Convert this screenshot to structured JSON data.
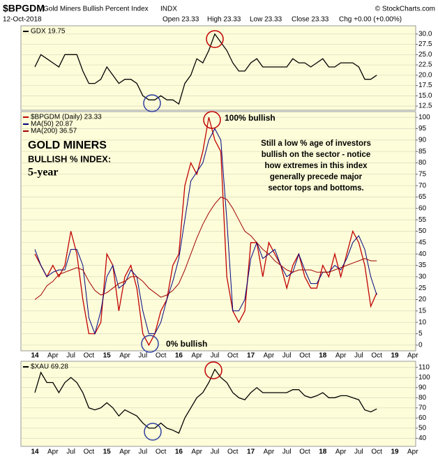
{
  "header": {
    "symbol": "$BPGDM",
    "name": "Gold Miners Bullish Percent Index",
    "exchange": "INDX",
    "source": "© StockCharts.com",
    "date": "12-Oct-2018",
    "quote": [
      "Open 23.33",
      "High 23.33",
      "Low 23.33",
      "Close 23.33",
      "Chg +0.00 (+0.00%)"
    ]
  },
  "chart_data": [
    {
      "type": "line",
      "grid": true,
      "legend": "upper left",
      "series": [
        {
          "name": "GDX 19.75",
          "color": "#000000",
          "values": [
            22,
            25,
            24,
            23,
            22,
            25,
            25,
            25,
            21,
            18,
            18,
            19,
            22,
            20,
            18,
            19,
            19,
            18,
            15,
            14,
            14,
            15,
            14,
            14,
            13,
            18,
            20,
            24,
            23,
            26,
            30,
            28,
            26,
            23,
            21,
            21,
            23,
            24,
            22,
            22,
            22,
            22,
            22,
            24,
            23,
            23,
            22,
            23,
            24,
            22,
            22,
            23,
            23,
            23,
            22,
            19,
            19,
            20,
            null,
            null,
            null,
            null,
            null,
            null
          ]
        }
      ],
      "ylim": [
        11.5,
        32
      ],
      "yticks": [
        12.5,
        {
          "value": 15,
          "label": "15.0"
        },
        17.5,
        {
          "value": 20,
          "label": "20.0"
        },
        22.5,
        {
          "value": 25,
          "label": "25.0"
        },
        27.5,
        {
          "value": 30,
          "label": "30.0"
        }
      ]
    },
    {
      "type": "line",
      "grid": true,
      "legend": "upper left",
      "categories": [
        "14",
        null,
        null,
        "Apr",
        null,
        null,
        "Jul",
        null,
        null,
        "Oct",
        null,
        null,
        "15",
        null,
        null,
        "Apr",
        null,
        null,
        "Jul",
        null,
        null,
        "Oct",
        null,
        null,
        "16",
        null,
        null,
        "Apr",
        null,
        null,
        "Jul",
        null,
        null,
        "Oct",
        null,
        null,
        "17",
        null,
        null,
        "Apr",
        null,
        null,
        "Jul",
        null,
        null,
        "Oct",
        null,
        null,
        "18",
        null,
        null,
        "Apr",
        null,
        null,
        "Jul",
        null,
        null,
        "Oct",
        null,
        null,
        "19",
        null,
        null,
        "Apr"
      ],
      "series": [
        {
          "name": "$BPGDM (Daily) 23.33",
          "color": "#c00000",
          "values": [
            40,
            35,
            30,
            35,
            30,
            35,
            50,
            40,
            20,
            5,
            5,
            10,
            40,
            35,
            15,
            30,
            35,
            25,
            5,
            0,
            5,
            15,
            20,
            35,
            40,
            70,
            80,
            75,
            85,
            100,
            90,
            85,
            30,
            15,
            10,
            15,
            45,
            45,
            30,
            45,
            40,
            35,
            25,
            35,
            40,
            30,
            25,
            25,
            35,
            30,
            40,
            30,
            40,
            50,
            45,
            35,
            17,
            23,
            null,
            null,
            null,
            null,
            null,
            null
          ]
        },
        {
          "name": "MA(50) 20.87",
          "color": "#000080",
          "values": [
            42,
            35,
            30,
            32,
            33,
            33,
            42,
            42,
            35,
            12,
            5,
            15,
            30,
            35,
            25,
            27,
            33,
            30,
            15,
            5,
            5,
            10,
            20,
            28,
            38,
            55,
            72,
            76,
            80,
            90,
            95,
            90,
            55,
            15,
            15,
            20,
            38,
            45,
            38,
            40,
            42,
            35,
            30,
            32,
            40,
            33,
            27,
            27,
            32,
            32,
            35,
            33,
            38,
            45,
            48,
            42,
            30,
            22,
            null,
            null,
            null,
            null,
            null,
            null
          ]
        },
        {
          "name": "MA(200) 36.57",
          "color": "#a00000",
          "values": [
            20,
            22,
            26,
            28,
            31,
            32,
            33,
            34,
            33,
            28,
            24,
            22,
            23,
            25,
            27,
            28,
            30,
            30,
            28,
            25,
            23,
            21,
            22,
            24,
            27,
            33,
            40,
            47,
            53,
            58,
            62,
            65,
            64,
            60,
            55,
            50,
            48,
            45,
            42,
            40,
            37,
            35,
            33,
            32,
            33,
            33,
            33,
            32,
            32,
            32,
            33,
            34,
            35,
            36,
            37,
            38,
            37,
            37,
            null,
            null,
            null,
            null,
            null,
            null
          ]
        }
      ],
      "ylim": [
        -2.5,
        102.5
      ],
      "yticks": [
        0,
        5,
        10,
        15,
        20,
        25,
        30,
        35,
        40,
        45,
        50,
        55,
        60,
        65,
        70,
        75,
        80,
        85,
        90,
        95,
        100
      ],
      "annotations": [
        "100% bullish",
        "0% bullish",
        "GOLD MINERS",
        "BULLISH % INDEX:",
        "5-year",
        "Still a low % age of investors",
        "bullish on the sector - notice",
        "how extremes in this index",
        "generally precede major",
        "sector tops and bottoms."
      ]
    },
    {
      "type": "line",
      "grid": true,
      "legend": "upper left",
      "series": [
        {
          "name": "$XAU 69.28",
          "color": "#000000",
          "values": [
            85,
            105,
            95,
            95,
            85,
            95,
            100,
            95,
            85,
            70,
            68,
            70,
            75,
            70,
            62,
            68,
            65,
            62,
            55,
            50,
            50,
            55,
            50,
            48,
            45,
            60,
            70,
            80,
            85,
            95,
            108,
            100,
            95,
            85,
            80,
            78,
            85,
            90,
            85,
            85,
            85,
            85,
            85,
            88,
            88,
            82,
            80,
            82,
            85,
            80,
            80,
            82,
            82,
            80,
            78,
            68,
            66,
            69,
            null,
            null,
            null,
            null,
            null,
            null
          ]
        }
      ],
      "ylim": [
        32,
        116
      ],
      "yticks": [
        40,
        50,
        60,
        70,
        80,
        90,
        100,
        110
      ]
    }
  ]
}
